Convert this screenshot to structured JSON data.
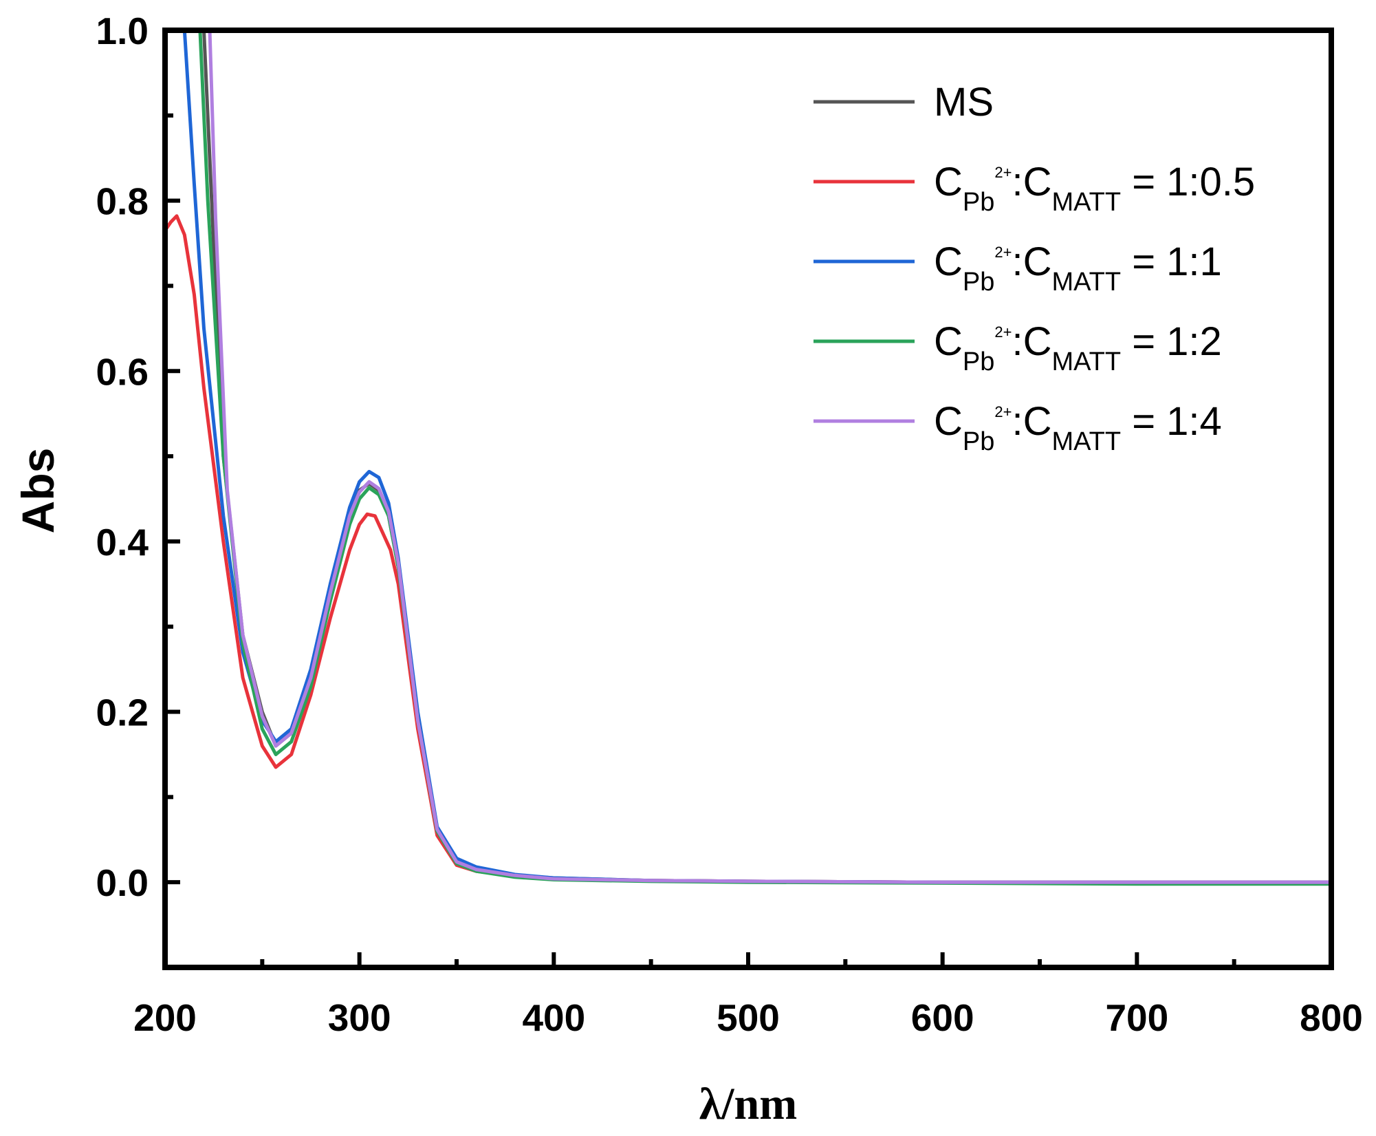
{
  "chart_data": {
    "type": "line",
    "xlabel": "λ/nm",
    "ylabel": "Abs",
    "xlim": [
      200,
      800
    ],
    "ylim": [
      -0.1,
      1.0
    ],
    "xticks": [
      200,
      300,
      400,
      500,
      600,
      700,
      800
    ],
    "xtick_labels": [
      "200",
      "300",
      "400",
      "500",
      "600",
      "700",
      "800"
    ],
    "yticks": [
      0.0,
      0.2,
      0.4,
      0.6,
      0.8,
      1.0
    ],
    "ytick_labels": [
      "0.0",
      "0.2",
      "0.4",
      "0.6",
      "0.8",
      "1.0"
    ],
    "legend_position": "top-right",
    "series": [
      {
        "name": "MS",
        "legend": {
          "text": "MS"
        },
        "color": "#555555",
        "x": [
          220,
          230,
          240,
          250,
          257,
          265,
          275,
          285,
          295,
          300,
          305,
          310,
          315,
          320,
          330,
          340,
          350,
          360,
          380,
          400,
          450,
          500,
          600,
          700,
          800
        ],
        "y": [
          1.0,
          0.5,
          0.29,
          0.2,
          0.16,
          0.175,
          0.24,
          0.34,
          0.43,
          0.46,
          0.468,
          0.46,
          0.43,
          0.37,
          0.19,
          0.06,
          0.025,
          0.015,
          0.008,
          0.005,
          0.002,
          0.001,
          0.0,
          0.0,
          0.0
        ]
      },
      {
        "name": "CPb2+:CMATT = 1:0.5",
        "legend": {
          "c1": "C",
          "sub1": "Pb",
          "sup1": "2+",
          "mid": ":C",
          "sub2": "MATT",
          "ratio": " = 1:0.5"
        },
        "color": "#e8333b",
        "x": [
          200,
          203,
          206,
          210,
          215,
          220,
          230,
          240,
          250,
          257,
          265,
          275,
          285,
          295,
          300,
          304,
          308,
          312,
          316,
          320,
          330,
          340,
          350,
          360,
          380,
          400,
          450,
          500,
          600,
          700,
          800
        ],
        "y": [
          0.765,
          0.775,
          0.782,
          0.76,
          0.69,
          0.58,
          0.4,
          0.24,
          0.16,
          0.135,
          0.15,
          0.22,
          0.31,
          0.39,
          0.42,
          0.432,
          0.43,
          0.41,
          0.39,
          0.35,
          0.18,
          0.055,
          0.02,
          0.013,
          0.007,
          0.004,
          0.002,
          0.001,
          0.0,
          0.0,
          0.0
        ]
      },
      {
        "name": "CPb2+:CMATT = 1:1",
        "legend": {
          "c1": "C",
          "sub1": "Pb",
          "sup1": "2+",
          "mid": ":C",
          "sub2": "MATT",
          "ratio": " = 1:1"
        },
        "color": "#1f66d6",
        "x": [
          210,
          215,
          220,
          230,
          240,
          250,
          257,
          265,
          275,
          285,
          295,
          300,
          305,
          310,
          315,
          320,
          330,
          340,
          350,
          360,
          380,
          400,
          450,
          500,
          600,
          700,
          800
        ],
        "y": [
          1.0,
          0.82,
          0.65,
          0.43,
          0.27,
          0.19,
          0.165,
          0.18,
          0.25,
          0.35,
          0.44,
          0.47,
          0.482,
          0.475,
          0.445,
          0.38,
          0.2,
          0.065,
          0.028,
          0.018,
          0.009,
          0.005,
          0.002,
          0.001,
          0.0,
          0.0,
          0.0
        ]
      },
      {
        "name": "CPb2+:CMATT = 1:2",
        "legend": {
          "c1": "C",
          "sub1": "Pb",
          "sup1": "2+",
          "mid": ":C",
          "sub2": "MATT",
          "ratio": " = 1:2"
        },
        "color": "#2aa35a",
        "x": [
          218,
          222,
          230,
          240,
          250,
          257,
          265,
          275,
          285,
          295,
          300,
          305,
          310,
          315,
          320,
          330,
          340,
          350,
          360,
          380,
          400,
          450,
          500,
          600,
          700,
          800
        ],
        "y": [
          1.0,
          0.8,
          0.5,
          0.28,
          0.18,
          0.15,
          0.165,
          0.23,
          0.33,
          0.42,
          0.45,
          0.463,
          0.455,
          0.43,
          0.37,
          0.19,
          0.06,
          0.022,
          0.013,
          0.006,
          0.003,
          0.001,
          0.0,
          -0.001,
          -0.002,
          -0.002
        ]
      },
      {
        "name": "CPb2+:CMATT = 1:4",
        "legend": {
          "c1": "C",
          "sub1": "Pb",
          "sup1": "2+",
          "mid": ":C",
          "sub2": "MATT",
          "ratio": " = 1:4"
        },
        "color": "#b07fe0",
        "x": [
          223,
          226,
          232,
          240,
          250,
          257,
          265,
          275,
          285,
          295,
          300,
          305,
          310,
          315,
          320,
          330,
          340,
          350,
          360,
          380,
          400,
          450,
          500,
          600,
          700,
          800
        ],
        "y": [
          1.0,
          0.78,
          0.46,
          0.29,
          0.195,
          0.16,
          0.175,
          0.24,
          0.34,
          0.43,
          0.458,
          0.47,
          0.462,
          0.435,
          0.375,
          0.19,
          0.062,
          0.024,
          0.015,
          0.008,
          0.004,
          0.002,
          0.001,
          0.0,
          0.0,
          0.0
        ]
      }
    ]
  }
}
